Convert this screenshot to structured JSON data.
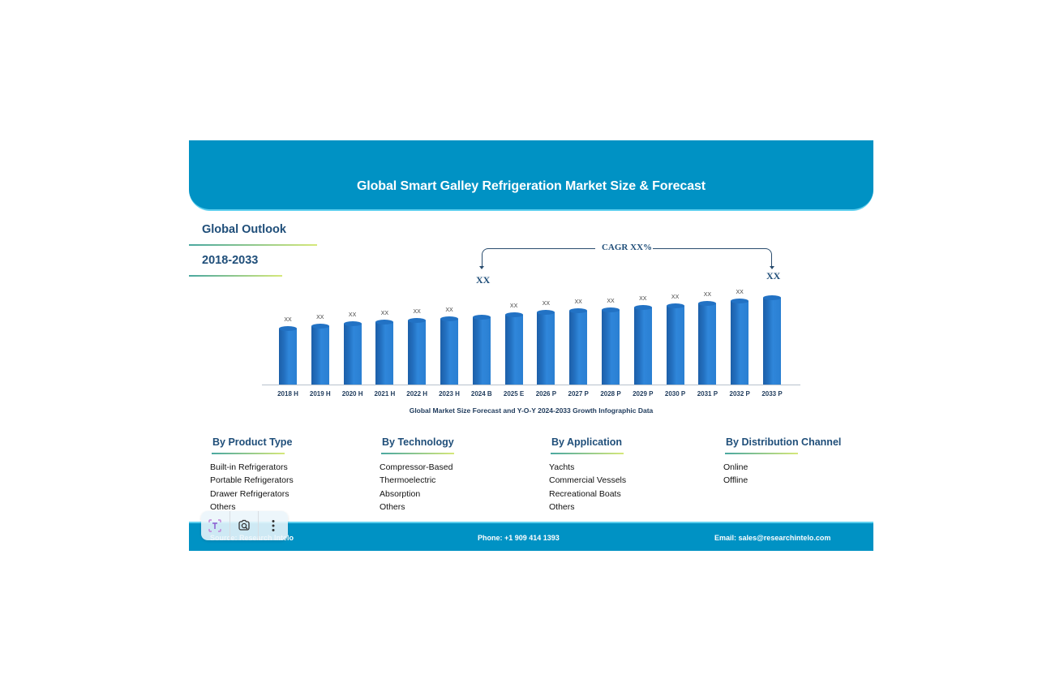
{
  "header": {
    "title": "Global Smart Galley Refrigeration Market Size & Forecast"
  },
  "outlook": {
    "label": "Global Outlook",
    "years": "2018-2033"
  },
  "cagr": {
    "label": "CAGR XX%",
    "start_value": "XX",
    "end_value": "XX"
  },
  "chart_data": {
    "type": "bar",
    "title": "Global Smart Galley Refrigeration Market Size & Forecast",
    "subtitle": "Global Market Size Forecast and Y-O-Y 2024-2033 Growth Infographic Data",
    "xlabel": "",
    "ylabel": "",
    "categories": [
      "2018 H",
      "2019 H",
      "2020 H",
      "2021 H",
      "2022 H",
      "2023 H",
      "2024 B",
      "2025 E",
      "2026 P",
      "2027 P",
      "2028 P",
      "2029 P",
      "2030 P",
      "2031 P",
      "2032 P",
      "2033 P"
    ],
    "values": [
      72,
      75,
      78,
      80,
      82,
      84,
      86,
      89,
      92,
      94,
      95,
      98,
      100,
      103,
      106,
      110
    ],
    "data_labels": [
      "XX",
      "XX",
      "XX",
      "XX",
      "XX",
      "XX",
      "",
      "XX",
      "XX",
      "XX",
      "XX",
      "XX",
      "XX",
      "XX",
      "XX",
      ""
    ],
    "grid": false,
    "legend": "none",
    "annotation": "CAGR XX%"
  },
  "caption": "Global Market Size Forecast and Y-O-Y 2024-2033 Growth Infographic Data",
  "segments": [
    {
      "title": "By Product Type",
      "items": [
        "Built-in Refrigerators",
        "Portable Refrigerators",
        "Drawer Refrigerators",
        "Others"
      ]
    },
    {
      "title": "By Technology",
      "items": [
        "Compressor-Based",
        "Thermoelectric",
        "Absorption",
        "Others"
      ]
    },
    {
      "title": "By Application",
      "items": [
        "Yachts",
        "Commercial Vessels",
        "Recreational Boats",
        "Others"
      ]
    },
    {
      "title": "By Distribution Channel",
      "items": [
        "Online",
        "Offline"
      ]
    }
  ],
  "footer": {
    "source": "Source: Research Intelo",
    "phone": "Phone: +1 909 414 1393",
    "email": "Email: sales@researchintelo.com"
  },
  "overlay": {
    "buttons": [
      {
        "icon": "text-select-icon"
      },
      {
        "icon": "lens-search-icon"
      },
      {
        "icon": "more-vertical-icon"
      }
    ]
  },
  "colors": {
    "primary": "#0092c4",
    "heading": "#1f4e79",
    "bar": "#2a7fd2"
  }
}
